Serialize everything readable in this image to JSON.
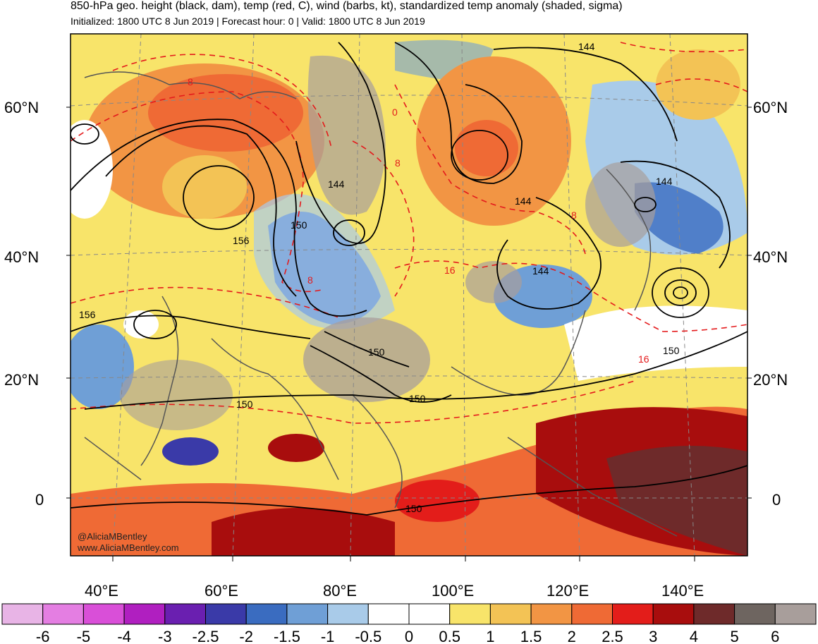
{
  "header": {
    "title": "850-hPa geo. height (black, dam), temp (red, C), wind (barbs, kt), standardized temp anomaly (shaded, sigma)",
    "subtitle": "Initialized: 1800 UTC 8 Jun 2019 | Forecast hour: 0 | Valid: 1800 UTC 8 Jun 2019"
  },
  "map": {
    "lat_labels": [
      "60°N",
      "40°N",
      "20°N",
      "0"
    ],
    "lon_labels": [
      "40°E",
      "60°E",
      "80°E",
      "100°E",
      "120°E",
      "140°E"
    ],
    "height_labels": [
      "144",
      "144",
      "144",
      "144",
      "144",
      "150",
      "150",
      "150",
      "150",
      "150",
      "150",
      "156",
      "156"
    ],
    "temp_labels": [
      "8",
      "8",
      "8",
      "8",
      "0",
      "16",
      "16"
    ],
    "credit_line1": "@AliciaMBentley",
    "credit_line2": "www.AliciaMBentley.com"
  },
  "colorbar": {
    "labels": [
      "-6",
      "-5",
      "-4",
      "-3",
      "-2.5",
      "-2",
      "-1.5",
      "-1",
      "-0.5",
      "0",
      "0.5",
      "1",
      "1.5",
      "2",
      "2.5",
      "3",
      "4",
      "5",
      "6"
    ],
    "colors": [
      "#e8b4e6",
      "#e47ee2",
      "#d94fd8",
      "#b01fc0",
      "#6a1fb0",
      "#3a3aa8",
      "#3a6cc0",
      "#6f9fd6",
      "#a9cbe9",
      "#ffffff",
      "#ffffff",
      "#f8e46a",
      "#f3c355",
      "#f29544",
      "#ef6a35",
      "#e31d1a",
      "#a80d0d",
      "#6e2a2a",
      "#6e6560",
      "#a89e9b"
    ]
  },
  "colors": {
    "height_contour": "#000000",
    "temp_contour": "#e41a1c",
    "coastline": "#555555"
  }
}
